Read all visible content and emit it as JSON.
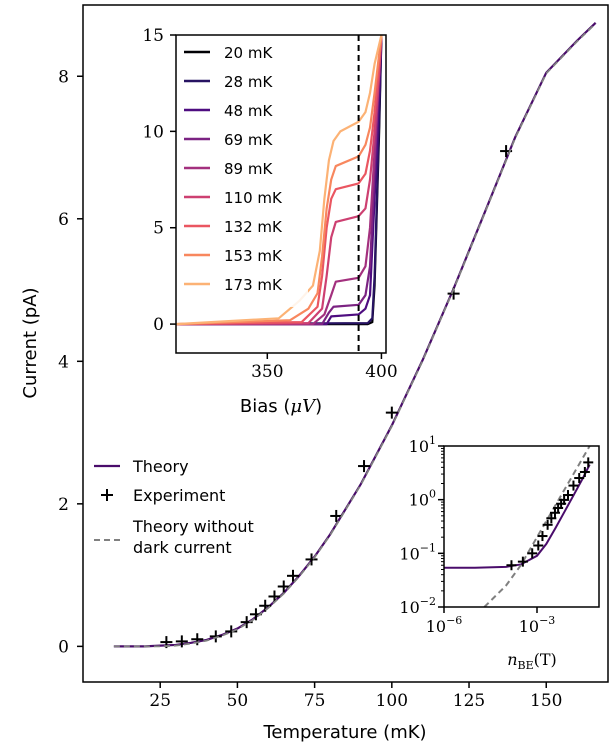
{
  "chart_data": [
    {
      "id": "main",
      "type": "line",
      "xlabel": "Temperature (mK)",
      "ylabel": "Current (pA)",
      "xlim": [
        0,
        170
      ],
      "ylim": [
        -0.5,
        9.0
      ],
      "xticks": [
        25,
        50,
        75,
        100,
        125,
        150
      ],
      "yticks": [
        0,
        2,
        4,
        6,
        8
      ],
      "series": [
        {
          "name": "Theory",
          "kind": "line",
          "color": "#4a0c6b",
          "x": [
            10,
            20,
            25,
            30,
            35,
            40,
            45,
            50,
            55,
            60,
            65,
            70,
            75,
            80,
            90,
            100,
            110,
            120,
            130,
            140,
            150,
            160,
            166
          ],
          "y": [
            0,
            0.0,
            0.01,
            0.02,
            0.05,
            0.09,
            0.16,
            0.25,
            0.38,
            0.55,
            0.75,
            0.99,
            1.26,
            1.57,
            2.28,
            3.1,
            4.02,
            5.02,
            6.08,
            7.15,
            8.05,
            8.5,
            8.75
          ]
        },
        {
          "name": "Experiment",
          "kind": "marker",
          "marker": "+",
          "color": "#000000",
          "x": [
            27,
            32,
            37,
            43,
            48,
            53,
            56,
            59,
            62,
            65,
            68,
            74,
            82,
            91,
            100,
            120,
            137
          ],
          "y": [
            0.06,
            0.07,
            0.1,
            0.14,
            0.21,
            0.34,
            0.45,
            0.57,
            0.7,
            0.84,
            0.99,
            1.22,
            1.83,
            2.53,
            3.28,
            4.95,
            6.95
          ]
        },
        {
          "name": "Theory without dark current",
          "kind": "dashed",
          "color": "#808080",
          "x": [
            10,
            20,
            25,
            30,
            35,
            40,
            45,
            50,
            55,
            60,
            65,
            70,
            75,
            80,
            90,
            100,
            110,
            120,
            130,
            140,
            150,
            160,
            166
          ],
          "y": [
            0,
            0.0,
            0.0,
            0.01,
            0.04,
            0.08,
            0.15,
            0.24,
            0.37,
            0.54,
            0.74,
            0.98,
            1.25,
            1.56,
            2.27,
            3.09,
            4.01,
            5.01,
            6.07,
            7.14,
            8.04,
            8.49,
            8.74
          ]
        }
      ],
      "legend": {
        "position": "center-left",
        "entries": [
          "Theory",
          "Experiment",
          "Theory without",
          "dark current"
        ]
      }
    },
    {
      "id": "inset-bias",
      "type": "line",
      "xlabel": "Bias (",
      "xlabel_unit": "μV",
      "xlabel_close": ")",
      "xlim": [
        310,
        402
      ],
      "ylim": [
        -1.5,
        15
      ],
      "xticks": [
        350,
        400
      ],
      "yticks": [
        0,
        5,
        10,
        15
      ],
      "vline": 390,
      "legend": {
        "position": "top-left",
        "entries": [
          "20 mK",
          "28 mK",
          "48 mK",
          "69 mK",
          "89 mK",
          "110 mK",
          "132 mK",
          "153 mK",
          "173 mK"
        ],
        "colors": [
          "#000004",
          "#271362",
          "#4e0d80",
          "#7b2382",
          "#a3307e",
          "#cd4071",
          "#ea5661",
          "#f8875e",
          "#fcb275"
        ]
      },
      "series": [
        {
          "name": "20 mK",
          "color": "#000004",
          "x": [
            310,
            394,
            396,
            397,
            398,
            399,
            400
          ],
          "y": [
            0,
            0,
            0.1,
            2,
            6,
            10,
            15
          ]
        },
        {
          "name": "28 mK",
          "color": "#271362",
          "x": [
            310,
            394,
            396,
            397,
            398,
            399,
            400
          ],
          "y": [
            0,
            0.05,
            0.3,
            2.5,
            6.5,
            10.5,
            15
          ]
        },
        {
          "name": "48 mK",
          "color": "#4e0d80",
          "x": [
            310,
            376,
            378,
            390,
            393,
            395,
            396,
            398,
            400
          ],
          "y": [
            0,
            0,
            0.4,
            0.5,
            0.8,
            1.5,
            4,
            9,
            15
          ]
        },
        {
          "name": "69 mK",
          "color": "#7b2382",
          "x": [
            310,
            374,
            377,
            379,
            390,
            393,
            395,
            397,
            399,
            400
          ],
          "y": [
            0,
            0,
            0.6,
            0.9,
            1.0,
            1.5,
            3,
            8,
            13,
            15
          ]
        },
        {
          "name": "89 mK",
          "color": "#a3307e",
          "x": [
            310,
            370,
            375,
            378,
            380,
            390,
            393,
            395,
            397,
            399,
            400
          ],
          "y": [
            0,
            0,
            0.5,
            1.5,
            2.2,
            2.4,
            3,
            5,
            9,
            13,
            15
          ]
        },
        {
          "name": "110 mK",
          "color": "#cd4071",
          "x": [
            310,
            368,
            374,
            376,
            378,
            380,
            390,
            393,
            395,
            397,
            399,
            400
          ],
          "y": [
            0,
            0.05,
            0.8,
            2.5,
            4.5,
            5.3,
            5.6,
            6,
            7.5,
            10,
            13,
            15
          ]
        },
        {
          "name": "132 mK",
          "color": "#ea5661",
          "x": [
            310,
            365,
            372,
            374,
            376,
            378,
            380,
            390,
            393,
            395,
            397,
            399,
            400
          ],
          "y": [
            0,
            0.1,
            0.9,
            2.5,
            5,
            6.5,
            7,
            7.3,
            7.8,
            9,
            11,
            13.5,
            15
          ]
        },
        {
          "name": "153 mK",
          "color": "#f8875e",
          "x": [
            310,
            360,
            368,
            372,
            374,
            376,
            378,
            380,
            390,
            393,
            395,
            397,
            399,
            400
          ],
          "y": [
            0,
            0.2,
            0.8,
            1.6,
            3.5,
            6,
            7.5,
            8.2,
            8.7,
            9.3,
            10.2,
            12,
            14,
            15
          ]
        },
        {
          "name": "173 mK",
          "color": "#fcb275",
          "x": [
            310,
            355,
            364,
            370,
            373,
            375,
            377,
            379,
            382,
            390,
            393,
            395,
            397,
            400
          ],
          "y": [
            0,
            0.3,
            1.2,
            2.0,
            3.8,
            6.5,
            8.5,
            9.5,
            10.0,
            10.5,
            11,
            12,
            13.5,
            15
          ]
        }
      ]
    },
    {
      "id": "inset-log",
      "type": "line",
      "xscale": "log",
      "yscale": "log",
      "xlabel": "n",
      "xlabel_sub": "BE",
      "xlabel_tail": "(T)",
      "xlim": [
        1e-06,
        0.1
      ],
      "ylim": [
        0.01,
        10
      ],
      "xticks": [
        "10",
        "10"
      ],
      "xtick_exps": [
        "−6",
        "−3"
      ],
      "xtick_values": [
        1e-06,
        0.001
      ],
      "yticks": [
        "10",
        "10",
        "10",
        "10"
      ],
      "ytick_exps": [
        "1",
        "0",
        "−1",
        "−2"
      ],
      "ytick_values": [
        10,
        1,
        0.1,
        0.01
      ],
      "series": [
        {
          "name": "Theory",
          "color": "#4a0c6b",
          "x": [
            1e-06,
            1e-05,
            0.0001,
            0.0003,
            0.001,
            0.002,
            0.004,
            0.008,
            0.015,
            0.03,
            0.05
          ],
          "y": [
            0.054,
            0.054,
            0.056,
            0.062,
            0.09,
            0.15,
            0.3,
            0.62,
            1.2,
            2.5,
            4.5
          ]
        },
        {
          "name": "Theory without dark current",
          "color": "#808080",
          "x": [
            2e-05,
            0.0001,
            0.0003,
            0.001,
            0.003,
            0.01,
            0.03,
            0.05
          ],
          "y": [
            0.01,
            0.025,
            0.06,
            0.2,
            0.6,
            2.0,
            6.0,
            10
          ]
        },
        {
          "name": "Experiment",
          "color": "#000000",
          "x": [
            0.00015,
            0.00035,
            0.0007,
            0.0011,
            0.0015,
            0.0022,
            0.0029,
            0.0038,
            0.0048,
            0.006,
            0.0075,
            0.01,
            0.015,
            0.023,
            0.035,
            0.045
          ],
          "y": [
            0.06,
            0.07,
            0.1,
            0.14,
            0.21,
            0.34,
            0.45,
            0.57,
            0.7,
            0.84,
            0.99,
            1.22,
            1.83,
            2.53,
            3.28,
            4.95
          ]
        }
      ]
    }
  ]
}
